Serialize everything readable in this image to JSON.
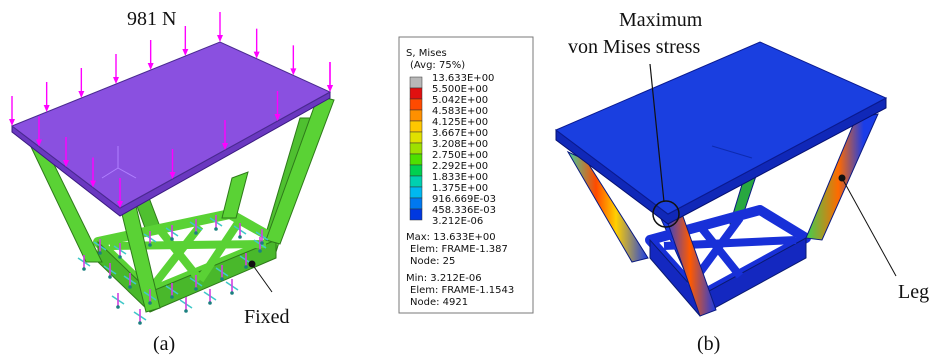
{
  "panel_a": {
    "load_label": "981 N",
    "fixed_label": "Fixed",
    "caption": "(a)"
  },
  "legend": {
    "title_line1": "S, Mises",
    "title_line2": "(Avg: 75%)",
    "levels": [
      {
        "value": "13.633E+00",
        "color": "#b8b8b8"
      },
      {
        "value": "5.500E+00",
        "color": "#e01010"
      },
      {
        "value": "5.042E+00",
        "color": "#ff4a00"
      },
      {
        "value": "4.583E+00",
        "color": "#ff9000"
      },
      {
        "value": "4.125E+00",
        "color": "#ffc800"
      },
      {
        "value": "3.667E+00",
        "color": "#e0e000"
      },
      {
        "value": "3.208E+00",
        "color": "#9ee000"
      },
      {
        "value": "2.750E+00",
        "color": "#4ee000"
      },
      {
        "value": "2.292E+00",
        "color": "#00d050"
      },
      {
        "value": "1.833E+00",
        "color": "#00d0b0"
      },
      {
        "value": "1.375E+00",
        "color": "#00b8f0"
      },
      {
        "value": "916.669E-03",
        "color": "#0078f0"
      },
      {
        "value": "458.336E-03",
        "color": "#0038e0"
      },
      {
        "value": "3.212E-06",
        "color": "#0a10c8"
      }
    ],
    "max_line": "Max: 13.633E+00",
    "max_elem": "Elem: FRAME-1.387",
    "max_node": "Node: 25",
    "min_line": "Min: 3.212E-06",
    "min_elem": "Elem: FRAME-1.1543",
    "min_node": "Node: 4921"
  },
  "panel_b": {
    "max_label_line1": "Maximum",
    "max_label_line2": "von Mises stress",
    "leg_label": "Leg",
    "caption": "(b)"
  },
  "colors": {
    "top_purple": "#8a50e0",
    "frame_green": "#5ad235",
    "load_magenta": "#ff00ff",
    "plate_blue": "#1a3fe0",
    "frame_blue": "#1830d8"
  }
}
